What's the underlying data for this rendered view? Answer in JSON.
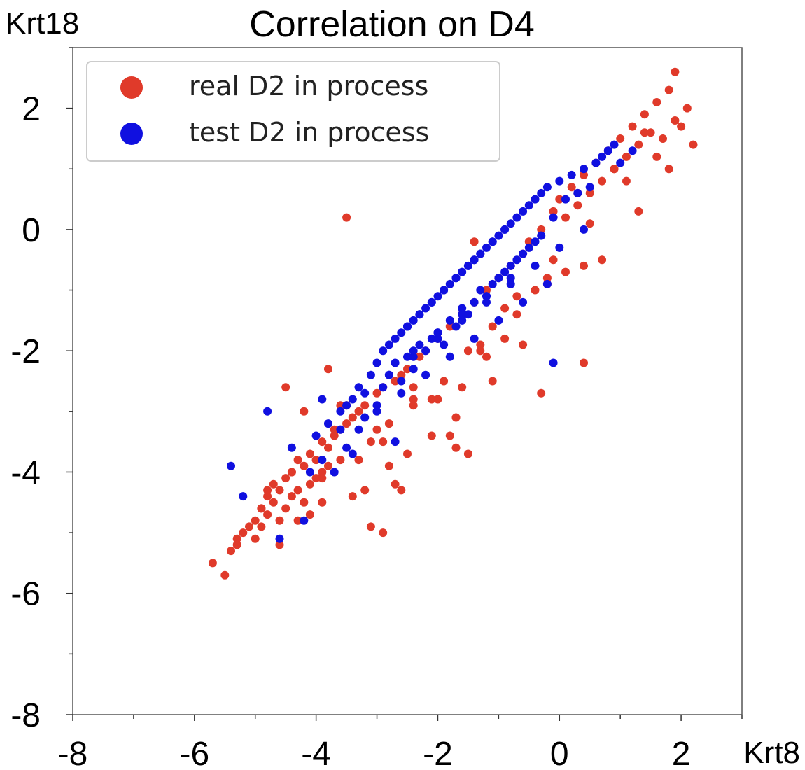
{
  "chart_data": {
    "type": "scatter",
    "title": "Correlation on D4",
    "xlabel": "Krt8",
    "ylabel": "Krt18",
    "xlim": [
      -8,
      3
    ],
    "ylim": [
      -8,
      3
    ],
    "xticks": [
      -8,
      -6,
      -4,
      -2,
      0,
      2
    ],
    "yticks": [
      -8,
      -6,
      -4,
      -2,
      0,
      2
    ],
    "xtick_labels": [
      "-8",
      "-6",
      "-4",
      "-2",
      "0",
      "2"
    ],
    "ytick_labels": [
      "-8",
      "-6",
      "-4",
      "-2",
      "0",
      "2"
    ],
    "legend_position": "top-left",
    "series": [
      {
        "name": "real D2 in process",
        "color": "#e03a2a",
        "x": [
          -5.7,
          -5.5,
          -5.4,
          -5.3,
          -5.2,
          -5.1,
          -5.0,
          -5.0,
          -4.9,
          -4.9,
          -4.8,
          -4.8,
          -4.7,
          -4.7,
          -4.6,
          -4.6,
          -4.5,
          -4.5,
          -4.4,
          -4.4,
          -4.3,
          -4.3,
          -4.2,
          -4.2,
          -4.1,
          -4.1,
          -4.0,
          -4.0,
          -3.9,
          -3.9,
          -3.8,
          -3.8,
          -3.7,
          -3.6,
          -3.6,
          -3.5,
          -3.4,
          -3.3,
          -3.2,
          -3.1,
          -3.0,
          -2.9,
          -2.8,
          -2.7,
          -2.6,
          -2.5,
          -2.4,
          -2.3,
          -2.2,
          -2.1,
          -2.0,
          -1.9,
          -1.8,
          -1.7,
          -1.6,
          -1.5,
          -1.4,
          -1.3,
          -1.2,
          -1.1,
          -1.0,
          -0.9,
          -0.8,
          -0.7,
          -0.6,
          -0.5,
          -0.4,
          -0.3,
          -0.2,
          -0.1,
          0.0,
          0.1,
          0.2,
          0.3,
          0.4,
          0.5,
          0.6,
          0.7,
          0.8,
          0.9,
          1.0,
          1.1,
          1.2,
          1.3,
          1.4,
          1.5,
          1.6,
          1.7,
          1.8,
          1.9,
          2.0,
          2.1,
          -4.5,
          -4.2,
          -3.8,
          -3.3,
          -2.9,
          -2.4,
          -1.8,
          -1.1,
          -0.6,
          0.1,
          0.7,
          1.3,
          1.8,
          -3.6,
          -2.6,
          -1.5,
          -0.3,
          0.4,
          -4.8,
          -4.6,
          -4.4,
          -4.1,
          -3.9,
          -3.7,
          -3.5,
          -3.2,
          -2.8,
          -2.4,
          -2.1,
          -1.7,
          -1.3,
          -0.9,
          -0.2,
          0.5,
          1.1,
          1.6,
          2.2,
          -5.3,
          -4.9,
          -4.3,
          -3.9,
          -3.4,
          -3.0,
          -2.5,
          -2.0,
          -1.6,
          -1.2,
          -0.7,
          -0.1,
          0.3,
          0.9,
          1.4,
          1.9,
          -3.5,
          0.4,
          -1.4,
          -3.1,
          -2.9,
          -2.7
        ],
        "y": [
          -5.5,
          -5.7,
          -5.3,
          -5.2,
          -5.0,
          -4.9,
          -4.8,
          -5.1,
          -4.6,
          -4.9,
          -4.4,
          -4.7,
          -4.5,
          -4.2,
          -4.3,
          -4.8,
          -4.1,
          -4.6,
          -4.0,
          -4.4,
          -3.8,
          -4.3,
          -3.9,
          -4.5,
          -3.7,
          -4.2,
          -3.8,
          -4.1,
          -3.5,
          -4.0,
          -3.6,
          -3.9,
          -3.4,
          -3.3,
          -3.8,
          -3.2,
          -3.1,
          -3.0,
          -2.9,
          -3.5,
          -2.7,
          -2.6,
          -3.2,
          -2.5,
          -2.4,
          -2.3,
          -2.6,
          -2.1,
          -2.0,
          -3.4,
          -1.8,
          -2.5,
          -1.6,
          -3.6,
          -1.4,
          -2.0,
          -1.2,
          -1.9,
          -1.0,
          -1.6,
          -0.8,
          -1.3,
          -0.6,
          -1.4,
          -0.4,
          -0.2,
          -1.0,
          0.0,
          -0.8,
          0.3,
          0.5,
          0.2,
          0.7,
          0.4,
          0.9,
          0.6,
          1.1,
          0.8,
          1.3,
          1.0,
          1.5,
          1.2,
          1.7,
          1.4,
          1.9,
          1.6,
          2.1,
          1.5,
          2.3,
          1.8,
          1.7,
          2.0,
          -2.6,
          -3.0,
          -2.3,
          -3.8,
          -3.5,
          -2.8,
          -3.4,
          -2.5,
          -1.9,
          -0.7,
          -0.5,
          0.3,
          1.0,
          -2.9,
          -4.3,
          -3.7,
          -2.7,
          -2.2,
          -4.3,
          -5.2,
          -4.0,
          -4.7,
          -4.5,
          -3.3,
          -2.9,
          -4.3,
          -3.9,
          -2.9,
          -2.8,
          -3.1,
          -2.0,
          -1.8,
          -0.9,
          0.1,
          0.8,
          1.2,
          1.4,
          -5.1,
          -4.6,
          -4.8,
          -4.1,
          -4.4,
          -3.3,
          -3.7,
          -2.8,
          -2.6,
          -2.1,
          -1.1,
          -0.5,
          0.6,
          1.0,
          1.6,
          2.6,
          0.2,
          -0.6,
          -0.2,
          -4.9,
          -5.0,
          -4.2
        ]
      },
      {
        "name": "test D2 in process",
        "color": "#1010e0",
        "x": [
          -5.4,
          -5.2,
          -4.8,
          -4.6,
          -4.4,
          -4.2,
          -4.0,
          -3.9,
          -3.8,
          -3.7,
          -3.6,
          -3.5,
          -3.4,
          -3.3,
          -3.2,
          -3.1,
          -3.0,
          -3.0,
          -2.9,
          -2.9,
          -2.8,
          -2.8,
          -2.7,
          -2.7,
          -2.6,
          -2.6,
          -2.5,
          -2.5,
          -2.4,
          -2.4,
          -2.3,
          -2.3,
          -2.2,
          -2.2,
          -2.1,
          -2.1,
          -2.0,
          -2.0,
          -1.9,
          -1.9,
          -1.8,
          -1.8,
          -1.7,
          -1.7,
          -1.6,
          -1.6,
          -1.5,
          -1.5,
          -1.4,
          -1.4,
          -1.3,
          -1.3,
          -1.2,
          -1.2,
          -1.1,
          -1.1,
          -1.0,
          -1.0,
          -0.9,
          -0.9,
          -0.8,
          -0.8,
          -0.7,
          -0.7,
          -0.6,
          -0.6,
          -0.5,
          -0.5,
          -0.4,
          -0.4,
          -0.3,
          -0.3,
          -0.2,
          -0.1,
          0.0,
          0.1,
          0.2,
          0.3,
          0.4,
          0.5,
          0.6,
          0.7,
          0.8,
          0.9,
          1.0,
          1.2,
          -3.5,
          -3.2,
          -2.8,
          -2.4,
          -2.0,
          -1.6,
          -1.2,
          -0.8,
          -0.4,
          0.0,
          0.4,
          -3.3,
          -3.0,
          -2.6,
          -2.2,
          -1.8,
          -1.4,
          -1.0,
          -0.6,
          -0.2,
          -2.5,
          -2.3,
          -2.1,
          -1.9,
          -1.7,
          -1.5,
          -1.3,
          -1.1,
          -0.9,
          -2.4,
          -2.0,
          -1.6,
          -1.2,
          -0.8,
          -3.9,
          -3.6,
          -3.4,
          -4.1,
          -2.7,
          -0.1,
          -1.4
        ],
        "y": [
          -3.9,
          -4.4,
          -3.0,
          -5.1,
          -3.6,
          -4.8,
          -3.4,
          -3.8,
          -3.2,
          -4.0,
          -3.0,
          -3.6,
          -2.8,
          -2.6,
          -3.1,
          -2.4,
          -2.2,
          -2.9,
          -2.0,
          -2.6,
          -1.9,
          -2.4,
          -1.8,
          -2.2,
          -1.7,
          -2.5,
          -1.6,
          -2.1,
          -1.5,
          -2.3,
          -1.4,
          -1.9,
          -1.3,
          -2.0,
          -1.2,
          -1.8,
          -1.1,
          -1.7,
          -1.0,
          -1.9,
          -0.9,
          -1.5,
          -0.8,
          -1.6,
          -0.7,
          -1.3,
          -0.6,
          -1.4,
          -0.5,
          -1.2,
          -0.4,
          -1.0,
          -0.3,
          -1.1,
          -0.2,
          -0.9,
          -0.1,
          -0.8,
          0.0,
          -0.7,
          0.1,
          -0.6,
          0.2,
          -0.5,
          0.3,
          -0.4,
          0.4,
          -0.3,
          0.5,
          -0.2,
          0.6,
          -0.1,
          0.7,
          0.2,
          0.8,
          0.5,
          0.9,
          0.6,
          1.0,
          0.7,
          1.1,
          1.2,
          1.3,
          1.4,
          1.1,
          1.3,
          -2.9,
          -2.7,
          -2.4,
          -2.1,
          -1.8,
          -1.5,
          -1.2,
          -0.9,
          -0.6,
          -0.3,
          0.0,
          -3.3,
          -3.0,
          -2.7,
          -2.4,
          -2.1,
          -1.8,
          -1.5,
          -1.2,
          -0.9,
          -1.6,
          -1.4,
          -1.2,
          -1.0,
          -0.8,
          -0.6,
          -0.4,
          -0.2,
          0.0,
          -2.0,
          -1.7,
          -1.4,
          -1.1,
          -0.8,
          -2.8,
          -3.3,
          -3.7,
          -4.0,
          -3.5,
          -2.2,
          -0.5
        ]
      }
    ]
  }
}
